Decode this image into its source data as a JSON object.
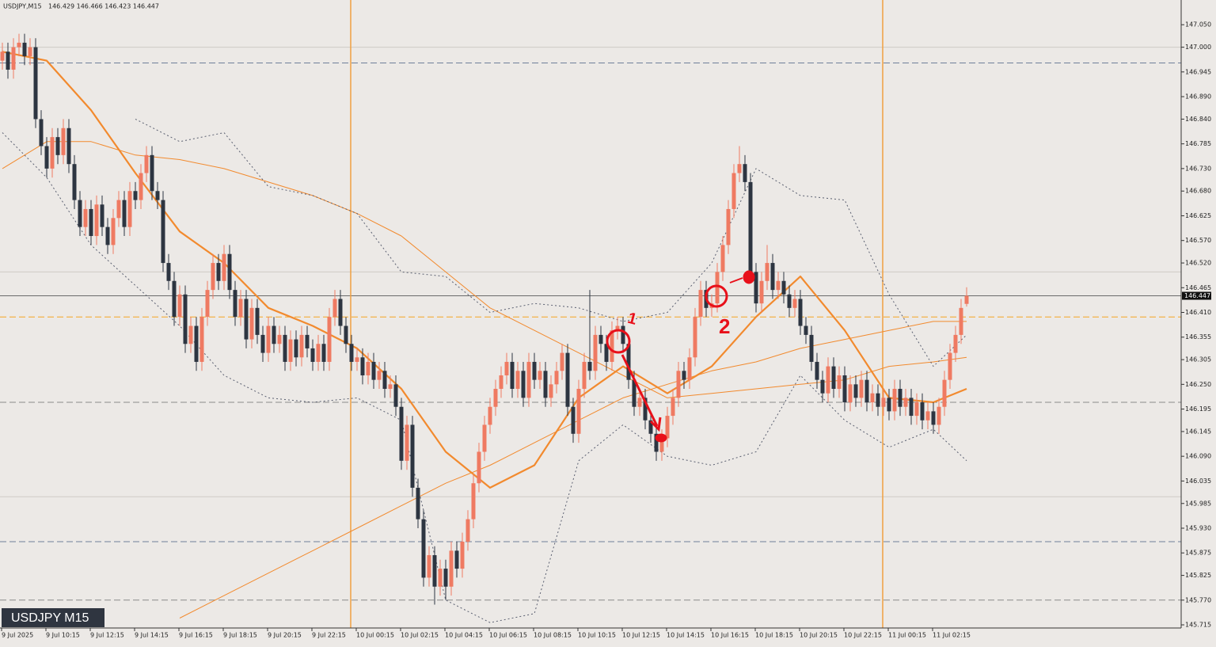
{
  "chart_data": {
    "type": "candlestick",
    "title": "USDJPY,M15",
    "ohlc_text": "146.429 146.466 146.423 146.447",
    "watermark": "USDJPY M15",
    "bull_color": "#ef7a62",
    "bear_color": "#2d3541",
    "ylim": [
      145.708,
      147.105
    ],
    "yticks": [
      {
        "value": 147.05,
        "label": "147.050"
      },
      {
        "value": 147.0,
        "label": "147.000"
      },
      {
        "value": 146.945,
        "label": "146.945"
      },
      {
        "value": 146.89,
        "label": "146.890"
      },
      {
        "value": 146.84,
        "label": "146.840"
      },
      {
        "value": 146.785,
        "label": "146.785"
      },
      {
        "value": 146.73,
        "label": "146.730"
      },
      {
        "value": 146.68,
        "label": "146.680"
      },
      {
        "value": 146.625,
        "label": "146.625"
      },
      {
        "value": 146.57,
        "label": "146.570"
      },
      {
        "value": 146.52,
        "label": "146.520"
      },
      {
        "value": 146.465,
        "label": "146.465"
      },
      {
        "value": 146.41,
        "label": "146.410"
      },
      {
        "value": 146.355,
        "label": "146.355"
      },
      {
        "value": 146.305,
        "label": "146.305"
      },
      {
        "value": 146.25,
        "label": "146.250"
      },
      {
        "value": 146.195,
        "label": "146.195"
      },
      {
        "value": 146.145,
        "label": "146.145"
      },
      {
        "value": 146.09,
        "label": "146.090"
      },
      {
        "value": 146.035,
        "label": "146.035"
      },
      {
        "value": 145.985,
        "label": "145.985"
      },
      {
        "value": 145.93,
        "label": "145.930"
      },
      {
        "value": 145.875,
        "label": "145.875"
      },
      {
        "value": 145.825,
        "label": "145.825"
      },
      {
        "value": 145.77,
        "label": "145.770"
      },
      {
        "value": 145.715,
        "label": "145.715"
      }
    ],
    "xticks": [
      {
        "value": 0,
        "label": "9 Jul 2025"
      },
      {
        "value": 8,
        "label": "9 Jul 10:15"
      },
      {
        "value": 16,
        "label": "9 Jul 12:15"
      },
      {
        "value": 24,
        "label": "9 Jul 14:15"
      },
      {
        "value": 32,
        "label": "9 Jul 16:15"
      },
      {
        "value": 40,
        "label": "9 Jul 18:15"
      },
      {
        "value": 48,
        "label": "9 Jul 20:15"
      },
      {
        "value": 56,
        "label": "9 Jul 22:15"
      },
      {
        "value": 64,
        "label": "10 Jul 00:15"
      },
      {
        "value": 72,
        "label": "10 Jul 02:15"
      },
      {
        "value": 80,
        "label": "10 Jul 04:15"
      },
      {
        "value": 88,
        "label": "10 Jul 06:15"
      },
      {
        "value": 96,
        "label": "10 Jul 08:15"
      },
      {
        "value": 104,
        "label": "10 Jul 10:15"
      },
      {
        "value": 112,
        "label": "10 Jul 12:15"
      },
      {
        "value": 120,
        "label": "10 Jul 14:15"
      },
      {
        "value": 128,
        "label": "10 Jul 16:15"
      },
      {
        "value": 136,
        "label": "10 Jul 18:15"
      },
      {
        "value": 144,
        "label": "10 Jul 20:15"
      },
      {
        "value": 152,
        "label": "10 Jul 22:15"
      },
      {
        "value": 160,
        "label": "11 Jul 00:15"
      },
      {
        "value": 168,
        "label": "11 Jul 02:15"
      }
    ],
    "open": [
      146.97,
      146.99,
      146.95,
      147.0,
      147.01,
      146.98,
      147.0,
      146.84,
      146.78,
      146.73,
      146.8,
      146.76,
      146.82,
      146.74,
      146.66,
      146.6,
      146.64,
      146.58,
      146.65,
      146.6,
      146.56,
      146.62,
      146.66,
      146.6,
      146.68,
      146.66,
      146.72,
      146.76,
      146.68,
      146.66,
      146.52,
      146.48,
      146.4,
      146.45,
      146.34,
      146.38,
      146.3,
      146.4,
      146.46,
      146.52,
      146.48,
      146.54,
      146.46,
      146.4,
      146.44,
      146.35,
      146.42,
      146.36,
      146.32,
      146.38,
      146.34,
      146.36,
      146.3,
      146.35,
      146.31,
      146.36,
      146.33,
      146.3,
      146.34,
      146.3,
      146.4,
      146.44,
      146.38,
      146.34,
      146.3,
      146.31,
      146.27,
      146.3,
      146.26,
      146.28,
      146.24,
      146.25,
      146.2,
      146.08,
      146.16,
      146.02,
      145.95,
      145.82,
      145.87,
      145.8,
      145.84,
      145.8,
      145.88,
      145.84,
      145.9,
      145.95,
      146.03,
      146.1,
      146.16,
      146.2,
      146.24,
      146.27,
      146.3,
      146.24,
      146.28,
      146.22,
      146.3,
      146.26,
      146.28,
      146.22,
      146.25,
      146.28,
      146.32,
      146.2,
      146.14,
      146.24,
      146.3,
      146.28,
      146.36,
      146.34,
      146.3,
      146.37,
      146.38,
      146.34,
      146.26,
      146.2,
      146.22,
      146.17,
      146.14,
      146.1,
      146.13,
      146.18,
      146.22,
      146.28,
      146.26,
      146.31,
      146.4,
      146.46,
      146.42,
      146.43,
      146.5,
      146.56,
      146.64,
      146.72,
      146.74,
      146.7,
      146.5,
      146.43,
      146.48,
      146.52,
      146.46,
      146.48,
      146.45,
      146.42,
      146.44,
      146.38,
      146.36,
      146.3,
      146.26,
      146.23,
      146.29,
      146.24,
      146.27,
      146.21,
      146.25,
      146.22,
      146.26,
      146.21,
      146.23,
      146.2,
      146.22,
      146.19,
      146.24,
      146.2,
      146.22,
      146.18,
      146.21,
      146.17,
      146.19,
      146.16,
      146.2,
      146.26,
      146.32,
      146.36,
      146.429
    ],
    "high": [
      147.01,
      147.01,
      147.02,
      147.03,
      147.03,
      147.02,
      147.02,
      146.86,
      146.8,
      146.82,
      146.82,
      146.84,
      146.84,
      146.76,
      146.68,
      146.66,
      146.66,
      146.67,
      146.67,
      146.62,
      146.64,
      146.68,
      146.68,
      146.7,
      146.7,
      146.74,
      146.78,
      146.78,
      146.7,
      146.68,
      146.54,
      146.5,
      146.47,
      146.47,
      146.4,
      146.4,
      146.42,
      146.48,
      146.54,
      146.54,
      146.56,
      146.56,
      146.48,
      146.46,
      146.46,
      146.44,
      146.44,
      146.38,
      146.4,
      146.4,
      146.38,
      146.38,
      146.37,
      146.37,
      146.38,
      146.38,
      146.35,
      146.36,
      146.36,
      146.42,
      146.46,
      146.46,
      146.4,
      146.36,
      146.33,
      146.33,
      146.32,
      146.32,
      146.3,
      146.3,
      146.27,
      146.27,
      146.22,
      146.18,
      146.18,
      146.04,
      145.97,
      145.89,
      145.89,
      145.86,
      145.86,
      145.9,
      145.9,
      145.92,
      145.97,
      146.05,
      146.12,
      146.18,
      146.22,
      146.26,
      146.29,
      146.32,
      146.32,
      146.3,
      146.3,
      146.32,
      146.32,
      146.3,
      146.3,
      146.27,
      146.3,
      146.34,
      146.34,
      146.22,
      146.26,
      146.32,
      146.46,
      146.38,
      146.38,
      146.36,
      146.39,
      146.4,
      146.4,
      146.36,
      146.28,
      146.24,
      146.24,
      146.19,
      146.16,
      146.15,
      146.2,
      146.24,
      146.3,
      146.3,
      146.33,
      146.42,
      146.48,
      146.48,
      146.45,
      146.52,
      146.58,
      146.66,
      146.74,
      146.78,
      146.76,
      146.72,
      146.52,
      146.5,
      146.56,
      146.54,
      146.5,
      146.5,
      146.47,
      146.46,
      146.46,
      146.4,
      146.38,
      146.32,
      146.28,
      146.31,
      146.31,
      146.29,
      146.29,
      146.27,
      146.27,
      146.28,
      146.28,
      146.25,
      146.25,
      146.24,
      146.24,
      146.26,
      146.26,
      146.24,
      146.24,
      146.23,
      146.23,
      146.21,
      146.21,
      146.22,
      146.28,
      146.34,
      146.38,
      146.44,
      146.466
    ],
    "low": [
      146.95,
      146.93,
      146.93,
      146.98,
      146.96,
      146.96,
      146.82,
      146.76,
      146.71,
      146.71,
      146.74,
      146.74,
      146.72,
      146.64,
      146.58,
      146.58,
      146.56,
      146.56,
      146.58,
      146.54,
      146.54,
      146.6,
      146.58,
      146.58,
      146.64,
      146.64,
      146.7,
      146.66,
      146.64,
      146.5,
      146.46,
      146.38,
      146.38,
      146.32,
      146.32,
      146.28,
      146.28,
      146.38,
      146.44,
      146.46,
      146.46,
      146.44,
      146.38,
      146.38,
      146.33,
      146.33,
      146.34,
      146.3,
      146.3,
      146.32,
      146.32,
      146.28,
      146.28,
      146.29,
      146.29,
      146.31,
      146.28,
      146.28,
      146.28,
      146.28,
      146.38,
      146.36,
      146.32,
      146.28,
      146.28,
      146.25,
      146.25,
      146.24,
      146.24,
      146.22,
      146.22,
      146.18,
      146.06,
      146.06,
      146.0,
      145.93,
      145.8,
      145.8,
      145.76,
      145.78,
      145.77,
      145.78,
      145.82,
      145.82,
      145.88,
      145.93,
      146.01,
      146.08,
      146.14,
      146.18,
      146.22,
      146.25,
      146.22,
      146.22,
      146.2,
      146.2,
      146.24,
      146.24,
      146.2,
      146.2,
      146.23,
      146.26,
      146.18,
      146.12,
      146.12,
      146.22,
      146.26,
      146.26,
      146.32,
      146.28,
      146.28,
      146.35,
      146.32,
      146.24,
      146.18,
      146.18,
      146.15,
      146.12,
      146.08,
      146.08,
      146.11,
      146.16,
      146.2,
      146.24,
      146.24,
      146.29,
      146.38,
      146.4,
      146.4,
      146.41,
      146.48,
      146.54,
      146.62,
      146.7,
      146.68,
      146.48,
      146.41,
      146.41,
      146.46,
      146.44,
      146.44,
      146.43,
      146.4,
      146.4,
      146.36,
      146.34,
      146.28,
      146.24,
      146.21,
      146.21,
      146.22,
      146.22,
      146.19,
      146.19,
      146.2,
      146.2,
      146.19,
      146.19,
      146.18,
      146.18,
      146.17,
      146.17,
      146.18,
      146.18,
      146.16,
      146.16,
      146.15,
      146.15,
      146.14,
      146.14,
      146.18,
      146.24,
      146.3,
      146.34,
      146.423
    ],
    "close": [
      146.99,
      146.95,
      147.0,
      147.01,
      146.98,
      147.0,
      146.84,
      146.78,
      146.73,
      146.8,
      146.76,
      146.82,
      146.74,
      146.66,
      146.6,
      146.64,
      146.58,
      146.65,
      146.6,
      146.56,
      146.62,
      146.66,
      146.6,
      146.68,
      146.66,
      146.72,
      146.76,
      146.68,
      146.66,
      146.52,
      146.48,
      146.4,
      146.45,
      146.34,
      146.38,
      146.3,
      146.4,
      146.46,
      146.52,
      146.48,
      146.54,
      146.46,
      146.4,
      146.44,
      146.35,
      146.42,
      146.36,
      146.32,
      146.38,
      146.34,
      146.36,
      146.3,
      146.35,
      146.31,
      146.36,
      146.33,
      146.3,
      146.34,
      146.3,
      146.4,
      146.44,
      146.38,
      146.34,
      146.3,
      146.31,
      146.27,
      146.3,
      146.26,
      146.28,
      146.24,
      146.25,
      146.2,
      146.08,
      146.16,
      146.02,
      145.95,
      145.82,
      145.87,
      145.8,
      145.84,
      145.8,
      145.88,
      145.84,
      145.9,
      145.95,
      146.03,
      146.1,
      146.16,
      146.2,
      146.24,
      146.27,
      146.3,
      146.24,
      146.28,
      146.22,
      146.3,
      146.26,
      146.28,
      146.22,
      146.25,
      146.28,
      146.32,
      146.2,
      146.14,
      146.24,
      146.3,
      146.28,
      146.36,
      146.34,
      146.3,
      146.37,
      146.38,
      146.34,
      146.26,
      146.2,
      146.22,
      146.17,
      146.14,
      146.1,
      146.13,
      146.18,
      146.22,
      146.28,
      146.26,
      146.31,
      146.4,
      146.46,
      146.42,
      146.43,
      146.5,
      146.56,
      146.64,
      146.72,
      146.74,
      146.7,
      146.5,
      146.43,
      146.48,
      146.52,
      146.46,
      146.48,
      146.45,
      146.42,
      146.44,
      146.38,
      146.36,
      146.3,
      146.26,
      146.23,
      146.29,
      146.24,
      146.27,
      146.21,
      146.25,
      146.22,
      146.26,
      146.21,
      146.23,
      146.2,
      146.22,
      146.19,
      146.24,
      146.2,
      146.22,
      146.18,
      146.21,
      146.17,
      146.19,
      146.16,
      146.2,
      146.26,
      146.32,
      146.36,
      146.42,
      146.447
    ],
    "indicator_x": [
      0,
      8,
      16,
      24,
      32,
      40,
      48,
      56,
      64,
      72,
      80,
      88,
      96,
      104,
      112,
      120,
      128,
      136,
      144,
      152,
      160,
      168,
      174
    ],
    "indicators": [
      {
        "color": "#f28a2e",
        "style": "thick",
        "values": [
          146.99,
          146.97,
          146.86,
          146.72,
          146.59,
          146.52,
          146.42,
          146.38,
          146.33,
          146.24,
          146.1,
          146.02,
          146.07,
          146.22,
          146.29,
          146.23,
          146.29,
          146.4,
          146.49,
          146.37,
          146.22,
          146.21,
          146.24
        ]
      },
      {
        "color": "#f28a2e",
        "style": "thin",
        "values": [
          146.73,
          146.79,
          146.79,
          146.76,
          146.75,
          146.73,
          146.7,
          146.67,
          146.63,
          146.58,
          146.5,
          146.42,
          146.37,
          146.32,
          146.27,
          146.22,
          146.23,
          146.24,
          146.25,
          146.26,
          146.29,
          146.3,
          146.31
        ]
      },
      {
        "color": "#f28a2e",
        "style": "thin",
        "values": [
          null,
          null,
          null,
          null,
          145.73,
          145.78,
          145.83,
          145.88,
          145.93,
          145.98,
          146.03,
          146.07,
          146.12,
          146.17,
          146.22,
          146.25,
          146.28,
          146.3,
          146.33,
          146.35,
          146.37,
          146.39,
          146.39
        ]
      },
      {
        "color": "#5a5f70",
        "style": "dotted",
        "values": [
          null,
          null,
          null,
          146.84,
          146.79,
          146.81,
          146.69,
          146.67,
          146.63,
          146.5,
          146.49,
          146.41,
          146.43,
          146.42,
          146.39,
          146.41,
          146.52,
          146.73,
          146.67,
          146.66,
          146.45,
          146.29,
          146.36
        ]
      },
      {
        "color": "#5a5f70",
        "style": "dotted",
        "values": [
          146.81,
          146.71,
          146.56,
          146.47,
          146.38,
          146.27,
          146.22,
          146.21,
          146.22,
          146.17,
          145.77,
          145.72,
          145.74,
          146.08,
          146.16,
          146.09,
          146.07,
          146.1,
          146.27,
          146.17,
          146.11,
          146.15,
          146.08
        ]
      }
    ],
    "levels": [
      {
        "value": 146.965,
        "color": "#6f7f99",
        "style": "dashed"
      },
      {
        "value": 145.9,
        "color": "#6f7f99",
        "style": "dashed"
      },
      {
        "value": 146.21,
        "color": "#8a8a8a",
        "style": "dashed"
      },
      {
        "value": 145.77,
        "color": "#8a8a8a",
        "style": "dashed"
      },
      {
        "value": 146.4,
        "color": "#f5a623",
        "style": "dashed"
      },
      {
        "value": 147.0,
        "color": "#cfcac5",
        "style": "solid"
      },
      {
        "value": 146.5,
        "color": "#cfcac5",
        "style": "solid"
      },
      {
        "value": 146.0,
        "color": "#cfcac5",
        "style": "solid"
      }
    ],
    "last_price": {
      "value": 146.447,
      "label": "146.447"
    },
    "annotations": [
      {
        "label": "1"
      },
      {
        "label": "2"
      }
    ]
  }
}
